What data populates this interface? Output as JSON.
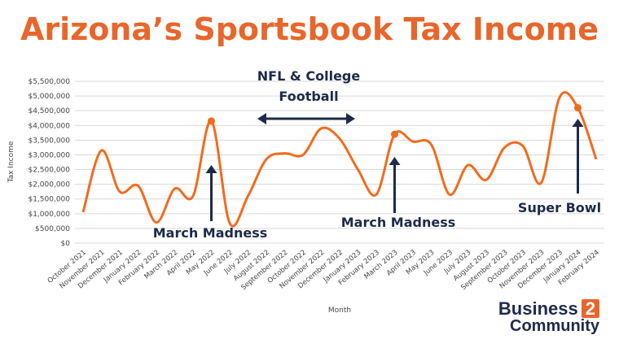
{
  "colors": {
    "title": "#e8662b",
    "line": "#f26b1d",
    "annotation": "#1e2a4a",
    "grid": "#d9d9d9",
    "axis_text": "#444444"
  },
  "chart_data": {
    "type": "line",
    "title": "Arizona’s Sportsbook Tax Income",
    "xlabel": "Month",
    "ylabel": "Tax Income",
    "ylim": [
      0,
      5500000
    ],
    "grid": true,
    "categories": [
      "October 2021",
      "November 2021",
      "December 2021",
      "January 2022",
      "February 2022",
      "March 2022",
      "April 2022",
      "May 2022",
      "June 2022",
      "July 2022",
      "August 2022",
      "September 2022",
      "October 2022",
      "November 2022",
      "December 2022",
      "January 2023",
      "February 2023",
      "March 2023",
      "April 2023",
      "May 2023",
      "June 2023",
      "July 2023",
      "August 2023",
      "September 2023",
      "October 2023",
      "November 2023",
      "December 2023",
      "January 2024",
      "February 2024"
    ],
    "y_ticks": [
      "$0",
      "$500,000",
      "$1,000,000",
      "$1,500,000",
      "$2,000,000",
      "$2,500,000",
      "$3,000,000",
      "$3,500,000",
      "$4,000,000",
      "$4,500,000",
      "$5,000,000",
      "$5,500,000"
    ],
    "y_tick_values": [
      0,
      500000,
      1000000,
      1500000,
      2000000,
      2500000,
      3000000,
      3500000,
      4000000,
      4500000,
      5000000,
      5500000
    ],
    "series": [
      {
        "values": [
          1050000,
          3150000,
          1750000,
          1950000,
          700000,
          1850000,
          1600000,
          4150000,
          680000,
          1600000,
          2850000,
          3050000,
          3000000,
          3900000,
          3550000,
          2500000,
          1650000,
          3700000,
          3450000,
          3350000,
          1650000,
          2650000,
          2150000,
          3250000,
          3300000,
          2050000,
          4950000,
          4600000,
          2850000
        ]
      }
    ],
    "highlight_indices": [
      7,
      17,
      27
    ],
    "annotations": [
      {
        "text": "March Madness",
        "index": 7
      },
      {
        "text": "March Madness",
        "index": 17
      },
      {
        "text": "Super Bowl",
        "index": 27
      },
      {
        "text": "NFL & College Football",
        "from_index": 9,
        "to_index": 15
      }
    ]
  },
  "annotations": {
    "march_madness_1": "March Madness",
    "march_madness_2": "March Madness",
    "super_bowl": "Super Bowl",
    "football_line1": "NFL & College",
    "football_line2": "Football"
  },
  "logo": {
    "word": "Business",
    "number": "2",
    "word2": "Community"
  }
}
